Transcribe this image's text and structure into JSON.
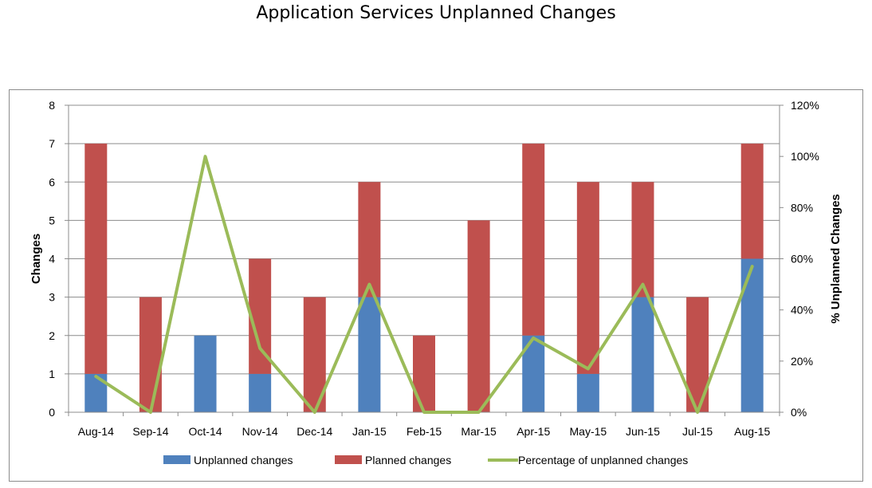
{
  "chart_data": {
    "type": "bar",
    "stacked": true,
    "title": "Application Services Unplanned Changes",
    "categories": [
      "Aug-14",
      "Sep-14",
      "Oct-14",
      "Nov-14",
      "Dec-14",
      "Jan-15",
      "Feb-15",
      "Mar-15",
      "Apr-15",
      "May-15",
      "Jun-15",
      "Jul-15",
      "Aug-15"
    ],
    "series": [
      {
        "name": "Unplanned changes",
        "values": [
          1,
          0,
          2,
          1,
          0,
          3,
          0,
          0,
          2,
          1,
          3,
          0,
          4
        ],
        "color": "#4f81bd",
        "axis": "left",
        "kind": "bar"
      },
      {
        "name": "Planned changes",
        "values": [
          6,
          3,
          0,
          3,
          3,
          3,
          2,
          5,
          5,
          5,
          3,
          3,
          3
        ],
        "color": "#c0504d",
        "axis": "left",
        "kind": "bar"
      },
      {
        "name": "Percentage of unplanned changes",
        "values": [
          14,
          0,
          100,
          25,
          0,
          50,
          0,
          0,
          29,
          17,
          50,
          0,
          57
        ],
        "color": "#9bbb59",
        "axis": "right",
        "kind": "line"
      }
    ],
    "ylabel": "Changes",
    "ylim": [
      0,
      8
    ],
    "yticks": [
      "0",
      "1",
      "2",
      "3",
      "4",
      "5",
      "6",
      "7",
      "8"
    ],
    "y2label": "% Unplanned Changes",
    "y2lim": [
      0,
      120
    ],
    "y2ticks": [
      "0%",
      "20%",
      "40%",
      "60%",
      "80%",
      "100%",
      "120%"
    ],
    "grid": true,
    "legend_position": "bottom"
  }
}
